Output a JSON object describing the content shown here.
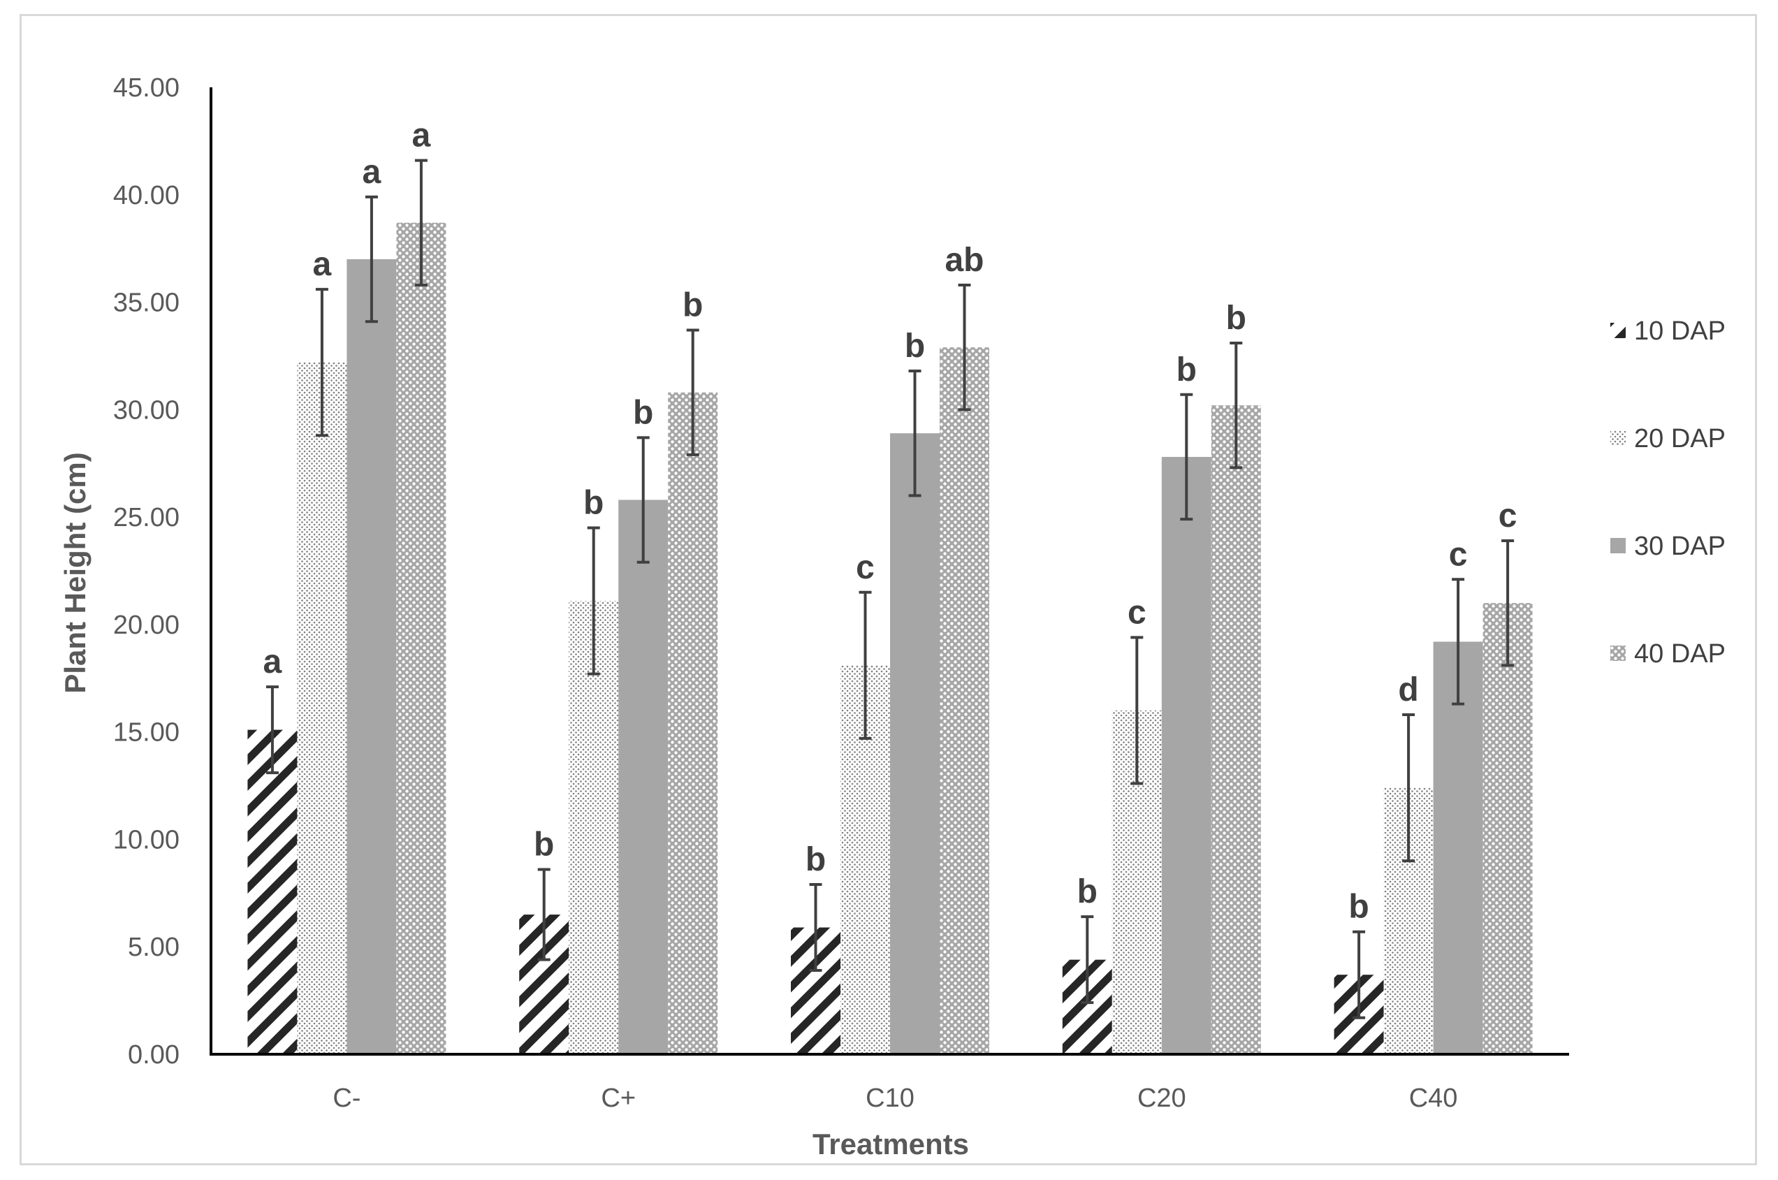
{
  "chart_data": {
    "type": "bar",
    "title": "",
    "xlabel": "Treatments",
    "ylabel": "Plant Height (cm)",
    "ylim": [
      0,
      45
    ],
    "yticks": [
      "0.00",
      "5.00",
      "10.00",
      "15.00",
      "20.00",
      "25.00",
      "30.00",
      "35.00",
      "40.00",
      "45.00"
    ],
    "categories": [
      "C-",
      "C+",
      "C10",
      "C20",
      "C40"
    ],
    "legend_position": "right",
    "grid": false,
    "error_bars": true,
    "series": [
      {
        "name": "10 DAP",
        "pattern": "diagonal-stripes",
        "values": [
          15.1,
          6.5,
          5.9,
          4.4,
          3.7
        ],
        "errors": [
          2.0,
          2.1,
          2.0,
          2.0,
          2.0
        ],
        "labels": [
          "a",
          "b",
          "b",
          "b",
          "b"
        ]
      },
      {
        "name": "20 DAP",
        "pattern": "fine-dots",
        "values": [
          32.2,
          21.1,
          18.1,
          16.0,
          12.4
        ],
        "errors": [
          3.4,
          3.4,
          3.4,
          3.4,
          3.4
        ],
        "labels": [
          "a",
          "b",
          "c",
          "c",
          "d"
        ]
      },
      {
        "name": "30 DAP",
        "pattern": "solid",
        "values": [
          37.0,
          25.8,
          28.9,
          27.8,
          19.2
        ],
        "errors": [
          2.9,
          2.9,
          2.9,
          2.9,
          2.9
        ],
        "labels": [
          "a",
          "b",
          "b",
          "b",
          "c"
        ]
      },
      {
        "name": "40 DAP",
        "pattern": "dense-dots",
        "values": [
          38.7,
          30.8,
          32.9,
          30.2,
          21.0
        ],
        "errors": [
          2.9,
          2.9,
          2.9,
          2.9,
          2.9
        ],
        "labels": [
          "a",
          "b",
          "ab",
          "b",
          "c"
        ]
      }
    ]
  },
  "colors": {
    "axis": "#000000",
    "text": "#595959",
    "bar_dark": "#262626",
    "bar_grey": "#a6a6a6",
    "error_bar": "#404040",
    "frame": "#d9d9d9"
  }
}
